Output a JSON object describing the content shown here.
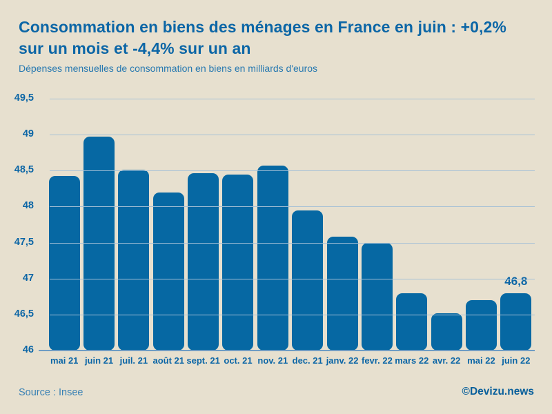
{
  "header": {
    "title": "Consommation en biens des ménages en France en juin : +0,2% sur un mois et -4,4% sur un an",
    "subtitle": "Dépenses mensuelles de consommation en biens en milliards d'euros"
  },
  "chart_data": {
    "type": "bar",
    "title": "Dépenses mensuelles de consommation en biens en milliards d'euros",
    "xlabel": "",
    "ylabel": "",
    "categories": [
      "mai 21",
      "juin 21",
      "juil. 21",
      "août 21",
      "sept. 21",
      "oct. 21",
      "nov. 21",
      "dec. 21",
      "janv. 22",
      "fevr. 22",
      "mars 22",
      "avr. 22",
      "mai 22",
      "juin 22"
    ],
    "values": [
      48.43,
      48.97,
      48.51,
      48.2,
      48.46,
      48.45,
      48.57,
      47.95,
      47.58,
      47.5,
      46.8,
      46.52,
      46.7,
      46.8
    ],
    "y_ticks": [
      "49,5",
      "49",
      "48,5",
      "48",
      "47,5",
      "47",
      "46,5",
      "46"
    ],
    "ylim": [
      46,
      49.5
    ],
    "grid": true,
    "legend": false,
    "annotation": {
      "text": "46,8",
      "category_index": 13
    },
    "bar_color": "#0668a3",
    "gridline_color": "#a6c1d6",
    "background_color": "#e7e0cf",
    "label_color": "#0c66a6"
  },
  "footer": {
    "source": "Source : Insee",
    "credit": "©Devizu.news"
  }
}
